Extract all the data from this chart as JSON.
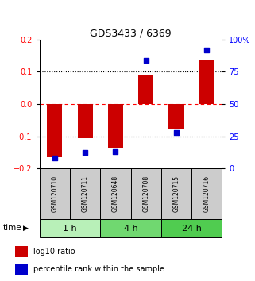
{
  "title": "GDS3433 / 6369",
  "samples": [
    "GSM120710",
    "GSM120711",
    "GSM120648",
    "GSM120708",
    "GSM120715",
    "GSM120716"
  ],
  "log10_ratio": [
    -0.165,
    -0.105,
    -0.135,
    0.09,
    -0.075,
    0.135
  ],
  "percentile_rank": [
    0.085,
    0.125,
    0.13,
    0.84,
    0.28,
    0.92
  ],
  "groups": [
    {
      "label": "1 h",
      "indices": [
        0,
        1
      ],
      "color": "#b8f0b8"
    },
    {
      "label": "4 h",
      "indices": [
        2,
        3
      ],
      "color": "#70d870"
    },
    {
      "label": "24 h",
      "indices": [
        4,
        5
      ],
      "color": "#50cc50"
    }
  ],
  "ylim_left": [
    -0.2,
    0.2
  ],
  "ylim_right": [
    0,
    100
  ],
  "yticks_left": [
    -0.2,
    -0.1,
    0.0,
    0.1,
    0.2
  ],
  "yticks_right": [
    0,
    25,
    50,
    75,
    100
  ],
  "ytick_labels_right": [
    "0",
    "25",
    "50",
    "75",
    "100%"
  ],
  "hlines_dotted": [
    -0.1,
    0.1
  ],
  "hline_red_dashed": 0.0,
  "bar_color": "#cc0000",
  "dot_color": "#0000cc",
  "bar_width": 0.5,
  "dot_size": 22,
  "sample_box_color": "#cccccc",
  "background_color": "#ffffff",
  "time_label": "time",
  "legend_log10": "log10 ratio",
  "legend_percentile": "percentile rank within the sample",
  "title_fontsize": 9,
  "axis_fontsize": 7,
  "sample_fontsize": 5.5,
  "group_fontsize": 8,
  "legend_fontsize": 7
}
